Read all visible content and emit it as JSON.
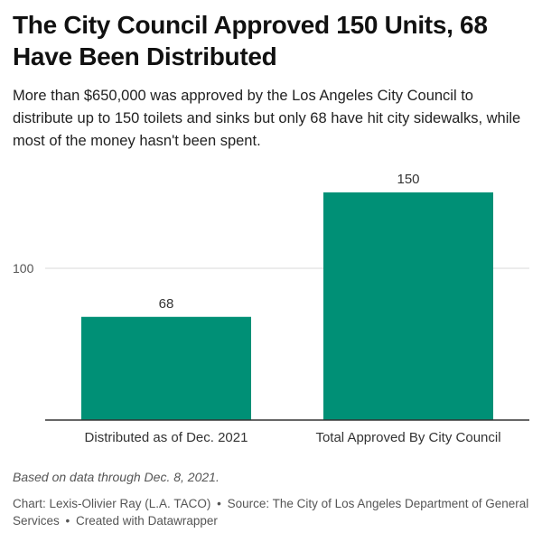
{
  "header": {
    "title": "The City Council Approved 150 Units, 68 Have Been Distributed",
    "subtitle": "More than $650,000 was approved by the Los Angeles City Council to distribute up to 150 toilets and sinks but only 68 have hit city sidewalks, while most of the money hasn't been spent."
  },
  "chart_data": {
    "type": "bar",
    "categories": [
      "Distributed as of Dec. 2021",
      "Total Approved By City Council"
    ],
    "values": [
      68,
      150
    ],
    "data_labels": [
      "68",
      "150"
    ],
    "yticks": [
      100
    ],
    "ylim": [
      0,
      160
    ],
    "grid": true,
    "bar_color": "#009076"
  },
  "footer": {
    "notes": "Based on data through Dec. 8, 2021.",
    "byline_prefix": "Chart:",
    "author": "Lexis-Olivier Ray (L.A. TACO)",
    "separator": "•",
    "source_prefix": "Source:",
    "source": "The City of Los Angeles Department of General Services",
    "credit": "Created with Datawrapper"
  }
}
